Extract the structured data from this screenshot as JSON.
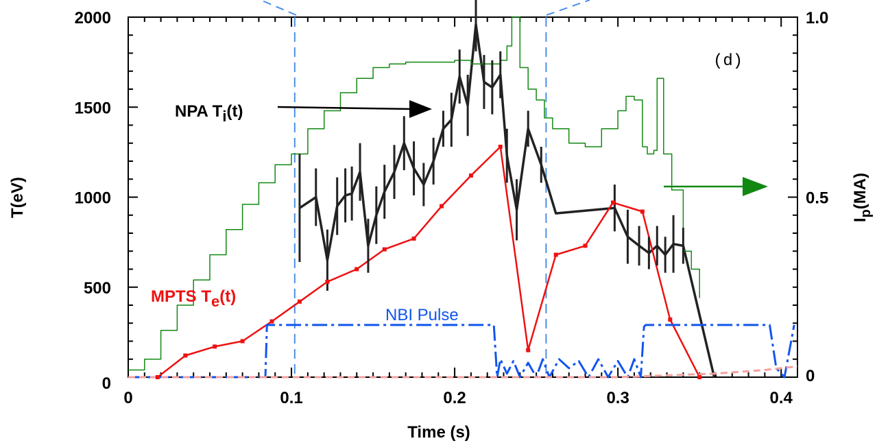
{
  "chart_data": {
    "type": "line",
    "title": "",
    "panel_label": "(d)",
    "xlabel": "Time (s)",
    "ylabel_left": "T(eV)",
    "ylabel_right_main": "I",
    "ylabel_right_sub": "p",
    "ylabel_right_tail": "(MA)",
    "xlim": [
      0,
      0.41
    ],
    "ylim_left": [
      0,
      2000
    ],
    "ylim_right": [
      0,
      1.0
    ],
    "x_ticks": [
      {
        "value": 0,
        "label": "0"
      },
      {
        "value": 0.1,
        "label": "0.1"
      },
      {
        "value": 0.2,
        "label": "0.2"
      },
      {
        "value": 0.3,
        "label": "0.3"
      },
      {
        "value": 0.4,
        "label": "0.4"
      }
    ],
    "y_left_ticks": [
      {
        "value": 0,
        "label": "0"
      },
      {
        "value": 500,
        "label": "500"
      },
      {
        "value": 1000,
        "label": "1000"
      },
      {
        "value": 1500,
        "label": "1500"
      },
      {
        "value": 2000,
        "label": "2000"
      }
    ],
    "y_right_ticks": [
      {
        "value": 0,
        "label": "0"
      },
      {
        "value": 0.5,
        "label": "0.5"
      },
      {
        "value": 1.0,
        "label": "1.0"
      }
    ],
    "grid": false,
    "vertical_markers": [
      0.102,
      0.256
    ],
    "series": [
      {
        "name": "NPA Ti(t)",
        "label_main": "NPA T",
        "label_sub": "i",
        "label_tail": "(t)",
        "axis": "left",
        "color": "#222222",
        "x": [
          0.105,
          0.115,
          0.122,
          0.128,
          0.133,
          0.137,
          0.142,
          0.147,
          0.152,
          0.157,
          0.163,
          0.169,
          0.175,
          0.181,
          0.187,
          0.193,
          0.198,
          0.203,
          0.208,
          0.213,
          0.218,
          0.223,
          0.228,
          0.232,
          0.238,
          0.245,
          0.253,
          0.262,
          0.298,
          0.306,
          0.313,
          0.319,
          0.324,
          0.329,
          0.334,
          0.34,
          0.359
        ],
        "y": [
          940,
          1000,
          650,
          950,
          1010,
          1020,
          1140,
          730,
          900,
          1030,
          1140,
          1300,
          1160,
          1070,
          1200,
          1380,
          1430,
          1670,
          1510,
          1960,
          1640,
          1610,
          1680,
          1230,
          930,
          1380,
          1180,
          910,
          940,
          780,
          730,
          690,
          730,
          680,
          740,
          730,
          0
        ],
        "err": [
          300,
          160,
          170,
          160,
          150,
          150,
          160,
          150,
          160,
          150,
          150,
          150,
          150,
          120,
          130,
          100,
          150,
          150,
          170,
          150,
          150,
          150,
          130,
          150,
          170,
          100,
          100,
          0,
          130,
          150,
          110,
          90,
          110,
          100,
          160,
          100,
          0
        ]
      },
      {
        "name": "MPTS Te(t)",
        "label_main": "MPTS T",
        "label_sub": "e",
        "label_tail": "(t)",
        "axis": "left",
        "color": "#ee1111",
        "x": [
          0.018,
          0.035,
          0.053,
          0.07,
          0.088,
          0.105,
          0.122,
          0.14,
          0.157,
          0.175,
          0.192,
          0.21,
          0.228,
          0.245,
          0.262,
          0.28,
          0.297,
          0.315,
          0.332,
          0.35
        ],
        "y": [
          0,
          120,
          170,
          200,
          310,
          420,
          530,
          600,
          710,
          770,
          950,
          1120,
          1280,
          150,
          680,
          730,
          970,
          920,
          320,
          0
        ]
      },
      {
        "name": "Ip",
        "axis": "right",
        "color": "#118811",
        "x": [
          0.0,
          0.01,
          0.02,
          0.03,
          0.04,
          0.05,
          0.06,
          0.07,
          0.08,
          0.09,
          0.1,
          0.11,
          0.12,
          0.13,
          0.14,
          0.15,
          0.16,
          0.17,
          0.18,
          0.19,
          0.2,
          0.21,
          0.22,
          0.228,
          0.232,
          0.235,
          0.24,
          0.245,
          0.25,
          0.255,
          0.26,
          0.27,
          0.28,
          0.29,
          0.3,
          0.305,
          0.31,
          0.315,
          0.318,
          0.32,
          0.322,
          0.324,
          0.328,
          0.333,
          0.34,
          0.345,
          0.35
        ],
        "y": [
          0.02,
          0.05,
          0.13,
          0.2,
          0.27,
          0.34,
          0.41,
          0.48,
          0.54,
          0.59,
          0.62,
          0.69,
          0.74,
          0.79,
          0.83,
          0.86,
          0.87,
          0.875,
          0.875,
          0.875,
          0.88,
          0.87,
          0.87,
          0.88,
          0.92,
          1.0,
          0.86,
          0.8,
          0.77,
          0.72,
          0.69,
          0.65,
          0.64,
          0.69,
          0.74,
          0.78,
          0.77,
          0.64,
          0.62,
          0.62,
          0.63,
          0.83,
          0.62,
          0.52,
          0.35,
          0.3,
          0.22
        ]
      },
      {
        "name": "NBI Pulse",
        "axis": "left",
        "color": "#1155ee",
        "x": [
          0.0,
          0.084,
          0.085,
          0.224,
          0.226,
          0.228,
          0.232,
          0.236,
          0.24,
          0.245,
          0.25,
          0.254,
          0.258,
          0.264,
          0.27,
          0.276,
          0.282,
          0.288,
          0.294,
          0.3,
          0.306,
          0.31,
          0.314,
          0.316,
          0.317,
          0.393,
          0.397,
          0.402,
          0.408
        ],
        "y": [
          0,
          0,
          290,
          290,
          0,
          100,
          20,
          90,
          0,
          80,
          0,
          100,
          0,
          100,
          50,
          90,
          0,
          100,
          0,
          90,
          0,
          100,
          0,
          280,
          290,
          290,
          50,
          0,
          290
        ]
      },
      {
        "name": "",
        "axis": "left",
        "color": "#f5a0a0",
        "x": [
          0.0,
          0.09,
          0.25,
          0.3,
          0.33,
          0.36,
          0.39,
          0.41
        ],
        "y": [
          0,
          0,
          0,
          0,
          10,
          20,
          40,
          60
        ]
      }
    ],
    "annotations": {
      "nbi_label": "NBI Pulse"
    }
  }
}
